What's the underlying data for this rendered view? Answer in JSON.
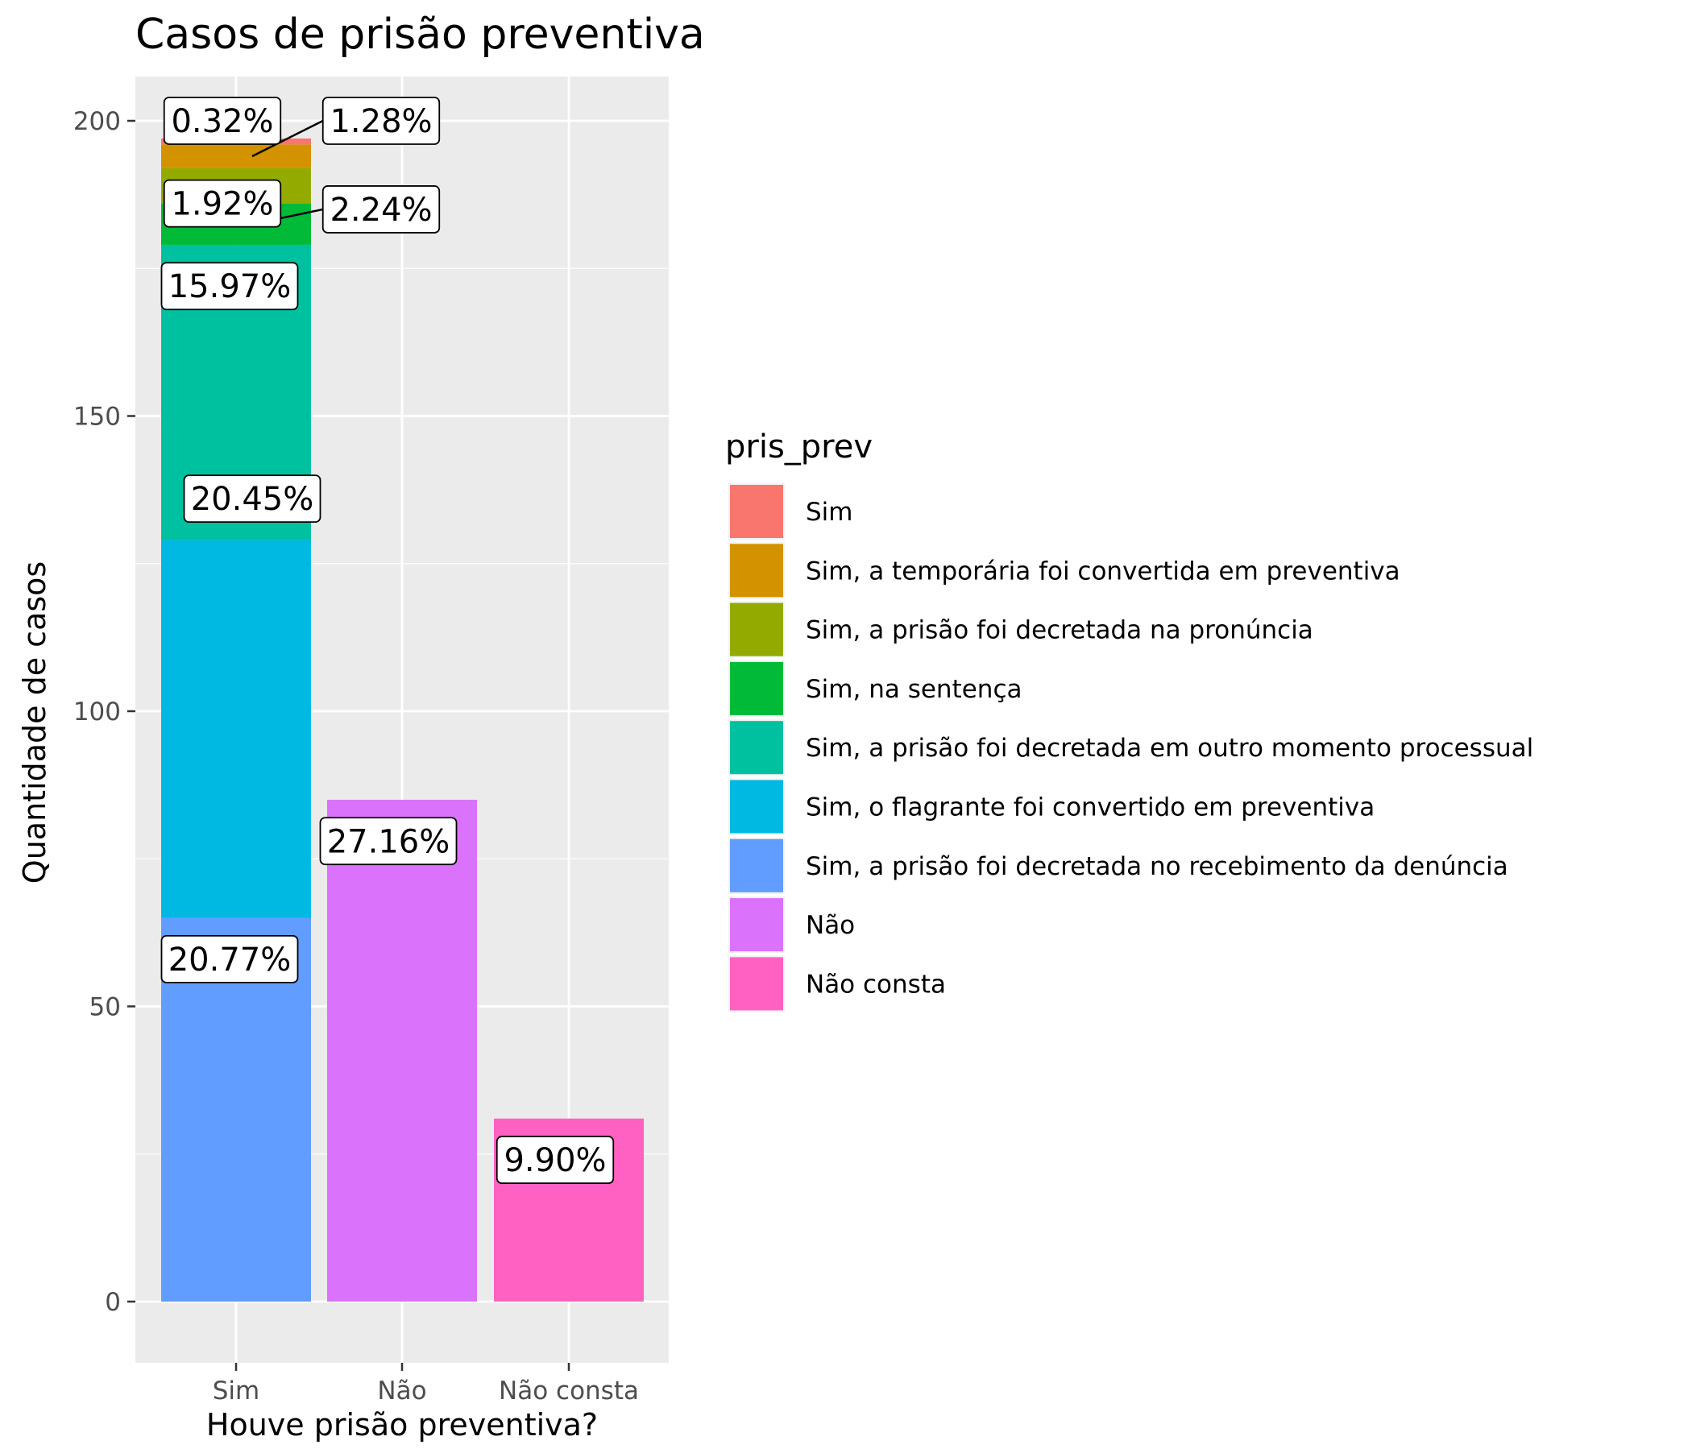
{
  "chart_data": {
    "type": "bar",
    "stacked": true,
    "title": "Casos de prisão preventiva",
    "xlabel": "Houve prisão preventiva?",
    "ylabel": "Quantidade de casos",
    "categories": [
      "Sim",
      "Não",
      "Não consta"
    ],
    "ylim": [
      -10,
      206
    ],
    "yticks": [
      0,
      50,
      100,
      150,
      200
    ],
    "grid": true,
    "legend": {
      "title": "pris_prev",
      "position": "right",
      "entries": [
        {
          "label": "Sim",
          "color": "#F8766D"
        },
        {
          "label": "Sim, a temporária foi convertida em preventiva",
          "color": "#D39200"
        },
        {
          "label": "Sim, a prisão foi decretada na pronúncia",
          "color": "#93AA00"
        },
        {
          "label": "Sim, na sentença",
          "color": "#00BA38"
        },
        {
          "label": "Sim, a prisão foi decretada em outro momento processual",
          "color": "#00C19F"
        },
        {
          "label": "Sim, o flagrante foi convertido em preventiva",
          "color": "#00B9E3"
        },
        {
          "label": "Sim, a prisão foi decretada no recebimento da denúncia",
          "color": "#619CFF"
        },
        {
          "label": "Não",
          "color": "#DB72FB"
        },
        {
          "label": "Não consta",
          "color": "#FF61C3"
        }
      ]
    },
    "segments": [
      {
        "category": "Sim",
        "fill": "Sim, a prisão foi decretada no recebimento da denúncia",
        "value": 65,
        "label": "20.77%",
        "color": "#619CFF"
      },
      {
        "category": "Sim",
        "fill": "Sim, o flagrante foi convertido em preventiva",
        "value": 64,
        "label": "20.45%",
        "color": "#00B9E3"
      },
      {
        "category": "Sim",
        "fill": "Sim, a prisão foi decretada em outro momento processual",
        "value": 50,
        "label": "15.97%",
        "color": "#00C19F"
      },
      {
        "category": "Sim",
        "fill": "Sim, na sentença",
        "value": 7,
        "label": "2.24%",
        "color": "#00BA38"
      },
      {
        "category": "Sim",
        "fill": "Sim, a prisão foi decretada na pronúncia",
        "value": 6,
        "label": "1.92%",
        "color": "#93AA00"
      },
      {
        "category": "Sim",
        "fill": "Sim, a temporária foi convertida em preventiva",
        "value": 4,
        "label": "1.28%",
        "color": "#D39200"
      },
      {
        "category": "Sim",
        "fill": "Sim",
        "value": 1,
        "label": "0.32%",
        "color": "#F8766D"
      },
      {
        "category": "Não",
        "fill": "Não",
        "value": 85,
        "label": "27.16%",
        "color": "#DB72FB"
      },
      {
        "category": "Não consta",
        "fill": "Não consta",
        "value": 31,
        "label": "9.90%",
        "color": "#FF61C3"
      }
    ]
  }
}
